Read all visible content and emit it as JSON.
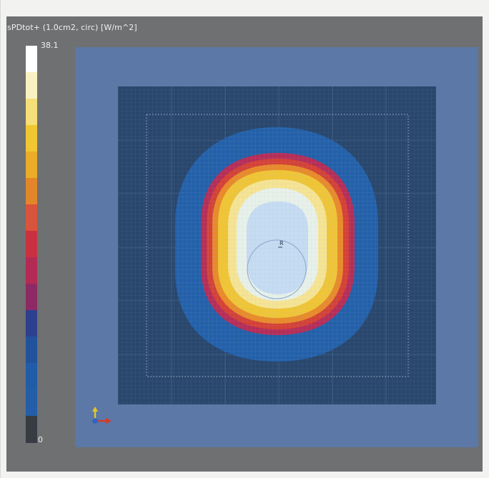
{
  "legend": {
    "title": "sPDtot+ (1.0cm2, circ) [W/m^2]",
    "max_label": "38.1",
    "min_label": "0",
    "colors": [
      "#ffffff",
      "#f9f1c2",
      "#f4df78",
      "#f0c733",
      "#ebac2a",
      "#e3862a",
      "#d8543a",
      "#c93140",
      "#b32b55",
      "#8e2a63",
      "#2f3f8f",
      "#22529c",
      "#215ca8",
      "#245ea8",
      "#373c43"
    ]
  },
  "plot": {
    "outer_background": "#5b78a6",
    "inner_background": "#29476d",
    "inner_grid_color": "#5a7296",
    "peak_marker": "R",
    "contour_colors": [
      "#2360a9",
      "#b62d57",
      "#d44136",
      "#e88a2a",
      "#f0c536",
      "#f6e493",
      "#e8f1e9",
      "#c6dcf2"
    ]
  },
  "axes_triad": {
    "colors": {
      "x": "#d43a2a",
      "y": "#e6c42a",
      "z": "#2f62c4"
    }
  }
}
